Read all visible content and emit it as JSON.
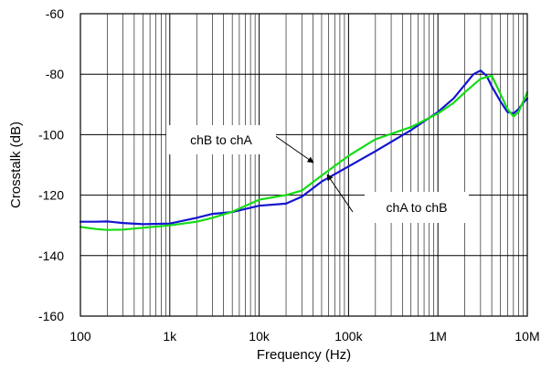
{
  "chart_data": {
    "type": "line",
    "xlabel": "Frequency (Hz)",
    "ylabel": "Crosstalk (dB)",
    "x_scale": "log",
    "xlim": [
      100,
      10000000
    ],
    "ylim": [
      -160,
      -60
    ],
    "grid": true,
    "x_ticks": [
      100,
      1000,
      10000,
      100000,
      1000000,
      10000000
    ],
    "x_tick_labels": [
      "100",
      "1k",
      "10k",
      "100k",
      "1M",
      "10M"
    ],
    "y_ticks": [
      -60,
      -80,
      -100,
      -120,
      -140,
      -160
    ],
    "y_tick_labels": [
      "-60",
      "-80",
      "-100",
      "-120",
      "-140",
      "-160"
    ],
    "series": [
      {
        "name": "chA to chB",
        "color": "#1414d2",
        "x": [
          100,
          150,
          200,
          300,
          500,
          1000,
          2000,
          3000,
          5000,
          10000,
          20000,
          30000,
          50000,
          100000,
          200000,
          500000,
          1000000,
          1500000,
          2000000,
          2500000,
          3000000,
          3500000,
          4000000,
          5000000,
          6000000,
          7000000,
          8000000,
          9000000,
          10000000
        ],
        "values": [
          -128.8,
          -128.8,
          -128.7,
          -129.2,
          -129.6,
          -129.4,
          -127.5,
          -126.2,
          -125.6,
          -123.5,
          -122.8,
          -120.5,
          -115.5,
          -110.5,
          -105.5,
          -98.5,
          -92.5,
          -88.0,
          -83.5,
          -80.0,
          -78.8,
          -80.5,
          -84.0,
          -89.0,
          -92.5,
          -93.0,
          -91.5,
          -89.5,
          -88.0
        ]
      },
      {
        "name": "chB to chA",
        "color": "#14dc14",
        "x": [
          100,
          150,
          200,
          300,
          500,
          1000,
          2000,
          3000,
          5000,
          10000,
          20000,
          30000,
          50000,
          100000,
          200000,
          500000,
          1000000,
          1500000,
          2000000,
          3000000,
          4000000,
          5000000,
          6000000,
          7000000,
          8000000,
          9000000,
          10000000
        ],
        "values": [
          -130.5,
          -131.2,
          -131.5,
          -131.4,
          -130.8,
          -130.0,
          -128.8,
          -127.5,
          -125.5,
          -121.5,
          -120.0,
          -118.5,
          -113.5,
          -107.0,
          -101.5,
          -97.5,
          -93.0,
          -89.5,
          -86.0,
          -81.5,
          -80.5,
          -86.5,
          -91.5,
          -94.0,
          -92.5,
          -89.0,
          -86.0
        ]
      }
    ],
    "annotations": [
      {
        "text": "chB to chA",
        "target_series": 1
      },
      {
        "text": "chA to chB",
        "target_series": 0
      }
    ]
  }
}
